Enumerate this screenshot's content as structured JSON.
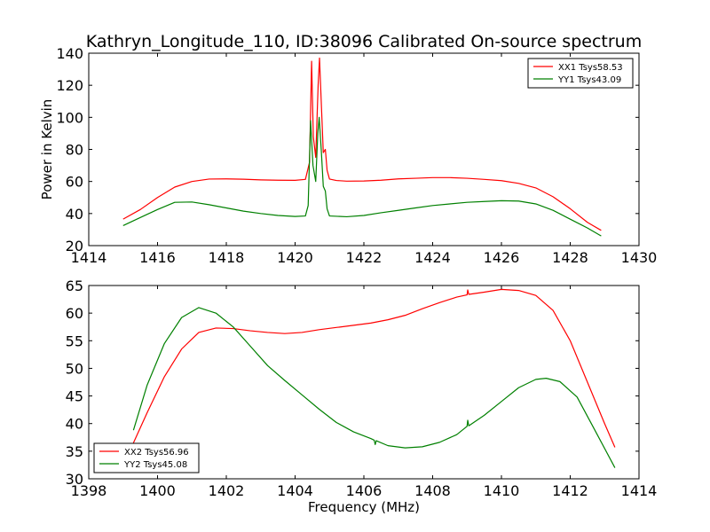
{
  "chart_data": [
    {
      "type": "line",
      "title": "Kathryn_Longitude_110, ID:38096 Calibrated On-source spectrum",
      "xlabel": "",
      "ylabel": "Power in Kelvin",
      "xlim": [
        1414,
        1430
      ],
      "ylim": [
        20,
        140
      ],
      "xticks": [
        1414,
        1416,
        1418,
        1420,
        1422,
        1424,
        1426,
        1428,
        1430
      ],
      "yticks": [
        20,
        40,
        60,
        80,
        100,
        120,
        140
      ],
      "grid": false,
      "legend": "top-right",
      "series": [
        {
          "name": "XX1 Tsys58.53",
          "color": "#ff0000",
          "points": [
            [
              1415.0,
              36.5
            ],
            [
              1415.5,
              42.5
            ],
            [
              1416.0,
              50.0
            ],
            [
              1416.5,
              56.5
            ],
            [
              1417.0,
              60.0
            ],
            [
              1417.5,
              61.5
            ],
            [
              1418.0,
              61.6
            ],
            [
              1418.5,
              61.4
            ],
            [
              1419.0,
              61.0
            ],
            [
              1419.5,
              60.8
            ],
            [
              1420.0,
              60.7
            ],
            [
              1420.3,
              61.3
            ],
            [
              1420.42,
              72.0
            ],
            [
              1420.48,
              135.0
            ],
            [
              1420.53,
              88.0
            ],
            [
              1420.6,
              75.0
            ],
            [
              1420.67,
              120.0
            ],
            [
              1420.71,
              137.0
            ],
            [
              1420.76,
              110.0
            ],
            [
              1420.82,
              78.0
            ],
            [
              1420.88,
              80.0
            ],
            [
              1420.93,
              67.0
            ],
            [
              1421.0,
              61.5
            ],
            [
              1421.2,
              60.6
            ],
            [
              1421.5,
              60.2
            ],
            [
              1422.0,
              60.3
            ],
            [
              1422.5,
              60.8
            ],
            [
              1423.0,
              61.6
            ],
            [
              1423.5,
              62.0
            ],
            [
              1424.0,
              62.4
            ],
            [
              1424.5,
              62.4
            ],
            [
              1425.0,
              62.0
            ],
            [
              1425.5,
              61.3
            ],
            [
              1426.0,
              60.5
            ],
            [
              1426.5,
              58.8
            ],
            [
              1427.0,
              56.0
            ],
            [
              1427.5,
              50.5
            ],
            [
              1428.0,
              43.0
            ],
            [
              1428.5,
              34.5
            ],
            [
              1428.9,
              29.5
            ]
          ]
        },
        {
          "name": "YY1 Tsys43.09",
          "color": "#008000",
          "points": [
            [
              1415.0,
              32.5
            ],
            [
              1415.5,
              37.5
            ],
            [
              1416.0,
              42.5
            ],
            [
              1416.5,
              47.0
            ],
            [
              1417.0,
              47.2
            ],
            [
              1417.5,
              45.5
            ],
            [
              1418.0,
              43.5
            ],
            [
              1418.5,
              41.5
            ],
            [
              1419.0,
              40.0
            ],
            [
              1419.5,
              38.8
            ],
            [
              1420.0,
              38.2
            ],
            [
              1420.3,
              38.5
            ],
            [
              1420.38,
              45.0
            ],
            [
              1420.45,
              98.0
            ],
            [
              1420.52,
              70.0
            ],
            [
              1420.6,
              60.0
            ],
            [
              1420.66,
              90.0
            ],
            [
              1420.7,
              100.0
            ],
            [
              1420.76,
              80.0
            ],
            [
              1420.82,
              57.0
            ],
            [
              1420.88,
              54.0
            ],
            [
              1420.93,
              43.0
            ],
            [
              1421.0,
              38.5
            ],
            [
              1421.5,
              38.0
            ],
            [
              1422.0,
              38.8
            ],
            [
              1422.5,
              40.5
            ],
            [
              1423.0,
              42.0
            ],
            [
              1423.5,
              43.5
            ],
            [
              1424.0,
              45.0
            ],
            [
              1424.5,
              46.0
            ],
            [
              1425.0,
              47.0
            ],
            [
              1425.5,
              47.5
            ],
            [
              1426.0,
              48.0
            ],
            [
              1426.5,
              47.8
            ],
            [
              1427.0,
              46.0
            ],
            [
              1427.5,
              42.0
            ],
            [
              1428.0,
              36.5
            ],
            [
              1428.5,
              31.0
            ],
            [
              1428.9,
              26.0
            ]
          ]
        }
      ]
    },
    {
      "type": "line",
      "title": "",
      "xlabel": "Frequency (MHz)",
      "ylabel": "",
      "xlim": [
        1398,
        1414
      ],
      "ylim": [
        30,
        65
      ],
      "xticks": [
        1398,
        1400,
        1402,
        1404,
        1406,
        1408,
        1410,
        1412,
        1414
      ],
      "yticks": [
        30,
        35,
        40,
        45,
        50,
        55,
        60,
        65
      ],
      "grid": false,
      "legend": "bottom-left",
      "series": [
        {
          "name": "XX2 Tsys56.96",
          "color": "#ff0000",
          "points": [
            [
              1399.3,
              36.5
            ],
            [
              1399.7,
              42.0
            ],
            [
              1400.2,
              48.5
            ],
            [
              1400.7,
              53.5
            ],
            [
              1401.2,
              56.5
            ],
            [
              1401.7,
              57.3
            ],
            [
              1402.2,
              57.2
            ],
            [
              1402.7,
              56.8
            ],
            [
              1403.2,
              56.5
            ],
            [
              1403.7,
              56.3
            ],
            [
              1404.2,
              56.5
            ],
            [
              1404.7,
              57.0
            ],
            [
              1405.2,
              57.4
            ],
            [
              1405.7,
              57.8
            ],
            [
              1406.2,
              58.2
            ],
            [
              1406.7,
              58.8
            ],
            [
              1407.2,
              59.6
            ],
            [
              1407.7,
              60.8
            ],
            [
              1408.2,
              61.9
            ],
            [
              1408.7,
              62.9
            ],
            [
              1409.0,
              63.3
            ],
            [
              1409.02,
              64.2
            ],
            [
              1409.05,
              63.4
            ],
            [
              1409.5,
              63.8
            ],
            [
              1410.0,
              64.3
            ],
            [
              1410.5,
              64.1
            ],
            [
              1411.0,
              63.2
            ],
            [
              1411.5,
              60.5
            ],
            [
              1412.0,
              55.0
            ],
            [
              1412.5,
              47.5
            ],
            [
              1413.0,
              40.0
            ],
            [
              1413.3,
              35.7
            ]
          ]
        },
        {
          "name": "YY2 Tsys45.08",
          "color": "#008000",
          "points": [
            [
              1399.3,
              38.8
            ],
            [
              1399.7,
              47.0
            ],
            [
              1400.2,
              54.5
            ],
            [
              1400.7,
              59.2
            ],
            [
              1401.2,
              61.0
            ],
            [
              1401.7,
              60.0
            ],
            [
              1402.2,
              57.5
            ],
            [
              1402.7,
              54.0
            ],
            [
              1403.2,
              50.5
            ],
            [
              1403.7,
              47.8
            ],
            [
              1404.2,
              45.2
            ],
            [
              1404.7,
              42.6
            ],
            [
              1405.2,
              40.2
            ],
            [
              1405.7,
              38.5
            ],
            [
              1406.2,
              37.3
            ],
            [
              1406.3,
              37.0
            ],
            [
              1406.33,
              36.2
            ],
            [
              1406.36,
              36.9
            ],
            [
              1406.7,
              36.0
            ],
            [
              1407.2,
              35.6
            ],
            [
              1407.7,
              35.8
            ],
            [
              1408.2,
              36.6
            ],
            [
              1408.7,
              38.0
            ],
            [
              1409.0,
              39.5
            ],
            [
              1409.02,
              40.6
            ],
            [
              1409.05,
              39.6
            ],
            [
              1409.5,
              41.5
            ],
            [
              1410.0,
              44.0
            ],
            [
              1410.5,
              46.5
            ],
            [
              1411.0,
              48.0
            ],
            [
              1411.3,
              48.2
            ],
            [
              1411.7,
              47.6
            ],
            [
              1412.2,
              44.8
            ],
            [
              1412.7,
              39.0
            ],
            [
              1413.3,
              32.0
            ]
          ]
        }
      ]
    }
  ]
}
